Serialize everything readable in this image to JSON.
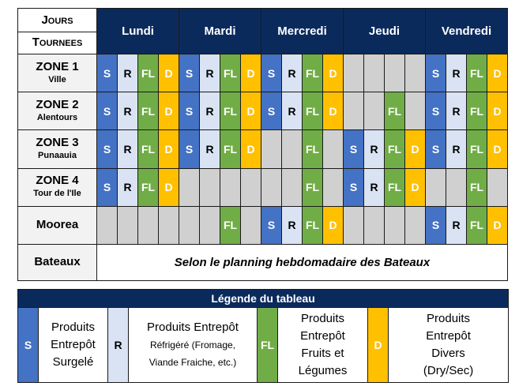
{
  "header": {
    "corner_top": "Jours",
    "corner_bottom": "Tournees",
    "days": [
      "Lundi",
      "Mardi",
      "Mercredi",
      "Jeudi",
      "Vendredi"
    ]
  },
  "rows": [
    {
      "zone": "ZONE 1",
      "sub": "Ville",
      "cells": [
        "S",
        "R",
        "FL",
        "D",
        "S",
        "R",
        "FL",
        "D",
        "S",
        "R",
        "FL",
        "D",
        "",
        "",
        "",
        "",
        "S",
        "R",
        "FL",
        "D"
      ]
    },
    {
      "zone": "ZONE 2",
      "sub": "Alentours",
      "cells": [
        "S",
        "R",
        "FL",
        "D",
        "S",
        "R",
        "FL",
        "D",
        "S",
        "R",
        "FL",
        "D",
        "",
        "",
        "FL",
        "",
        "S",
        "R",
        "FL",
        "D"
      ]
    },
    {
      "zone": "ZONE 3",
      "sub": "Punaauia",
      "cells": [
        "S",
        "R",
        "FL",
        "D",
        "S",
        "R",
        "FL",
        "D",
        "",
        "",
        "FL",
        "",
        "S",
        "R",
        "FL",
        "D",
        "S",
        "R",
        "FL",
        "D"
      ]
    },
    {
      "zone": "ZONE 4",
      "sub": "Tour de l'Ile",
      "cells": [
        "S",
        "R",
        "FL",
        "D",
        "",
        "",
        "",
        "",
        "",
        "",
        "FL",
        "",
        "S",
        "R",
        "FL",
        "D",
        "",
        "",
        "FL",
        ""
      ]
    },
    {
      "zone": "Moorea",
      "sub": "",
      "cells": [
        "",
        "",
        "",
        "",
        "",
        "",
        "FL",
        "",
        "S",
        "R",
        "FL",
        "D",
        "",
        "",
        "",
        "",
        "S",
        "R",
        "FL",
        "D"
      ]
    }
  ],
  "bateaux": {
    "label": "Bateaux",
    "note": "Selon le planning hebdomadaire des Bateaux"
  },
  "legend": {
    "title": "Légende du tableau",
    "items": [
      {
        "code": "S",
        "lines": [
          "Produits",
          "Entrepôt",
          "Surgelé"
        ]
      },
      {
        "code": "R",
        "lines": [
          "Produits Entrepôt",
          "Réfrigéré (Fromage,",
          "Viande Fraiche, etc.)"
        ]
      },
      {
        "code": "FL",
        "lines": [
          "Produits",
          "Entrepôt",
          "Fruits et",
          "Légumes"
        ]
      },
      {
        "code": "D",
        "lines": [
          "Produits",
          "Entrepôt",
          "Divers",
          "(Dry/Sec)"
        ]
      }
    ]
  },
  "colors": {
    "header_bg": "#0b2a5c",
    "S": "#4472c4",
    "R": "#dae3f3",
    "FL": "#70ad47",
    "D": "#ffc000",
    "empty": "#d0d0d0"
  }
}
